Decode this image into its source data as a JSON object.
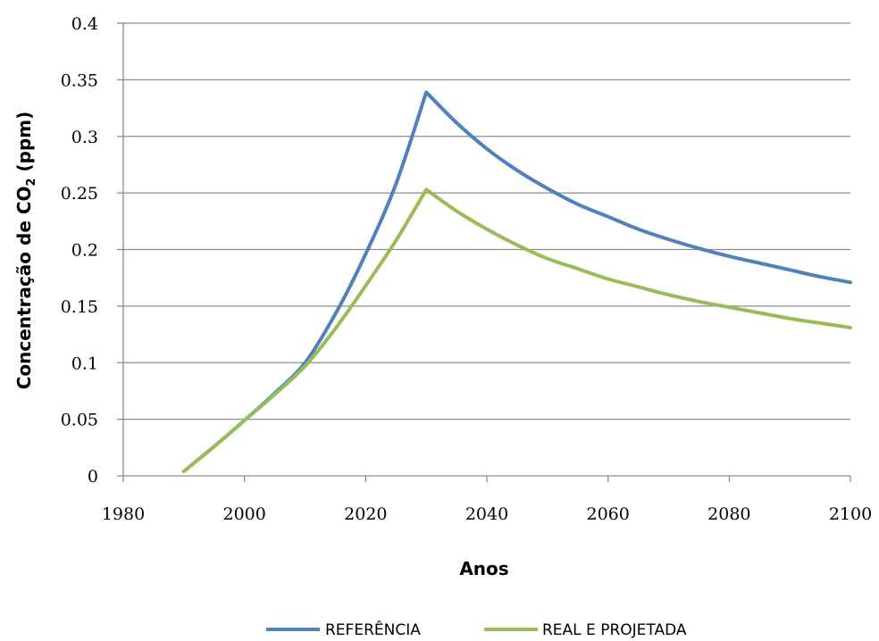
{
  "chart_data": {
    "type": "line",
    "title": "",
    "xlabel": "Anos",
    "ylabel_prefix": "Concentração de CO",
    "ylabel_sub": "2",
    "ylabel_suffix": " (ppm)",
    "xlim": [
      1980,
      2100
    ],
    "ylim": [
      0,
      0.4
    ],
    "xticks": [
      1980,
      2000,
      2020,
      2040,
      2060,
      2080,
      2100
    ],
    "yticks": [
      0,
      0.05,
      0.1,
      0.15,
      0.2,
      0.25,
      0.3,
      0.35,
      0.4
    ],
    "xtick_labels": [
      "1980",
      "2000",
      "2020",
      "2040",
      "2060",
      "2080",
      "2100"
    ],
    "ytick_labels": [
      "0",
      "0.05",
      "0.1",
      "0.15",
      "0.2",
      "0.25",
      "0.3",
      "0.35",
      "0.4"
    ],
    "grid": "horizontal",
    "legend_position": "bottom",
    "series": [
      {
        "name": "REFERÊNCIA",
        "color": "#4f81bd",
        "x": [
          1990,
          1995,
          2000,
          2005,
          2010,
          2015,
          2020,
          2025,
          2030,
          2035,
          2040,
          2045,
          2050,
          2055,
          2060,
          2065,
          2070,
          2075,
          2080,
          2085,
          2090,
          2095,
          2100
        ],
        "y": [
          0.004,
          0.026,
          0.049,
          0.073,
          0.1,
          0.143,
          0.196,
          0.258,
          0.339,
          0.312,
          0.289,
          0.27,
          0.254,
          0.24,
          0.229,
          0.218,
          0.209,
          0.201,
          0.194,
          0.188,
          0.182,
          0.176,
          0.171
        ]
      },
      {
        "name": "REAL E PROJETADA",
        "color": "#9bbb59",
        "x": [
          1990,
          1995,
          2000,
          2005,
          2010,
          2015,
          2020,
          2025,
          2030,
          2035,
          2040,
          2045,
          2050,
          2055,
          2060,
          2065,
          2070,
          2075,
          2080,
          2085,
          2090,
          2095,
          2100
        ],
        "y": [
          0.004,
          0.026,
          0.049,
          0.072,
          0.097,
          0.13,
          0.168,
          0.208,
          0.253,
          0.234,
          0.218,
          0.204,
          0.192,
          0.183,
          0.174,
          0.167,
          0.16,
          0.154,
          0.149,
          0.144,
          0.139,
          0.135,
          0.131
        ]
      }
    ]
  }
}
